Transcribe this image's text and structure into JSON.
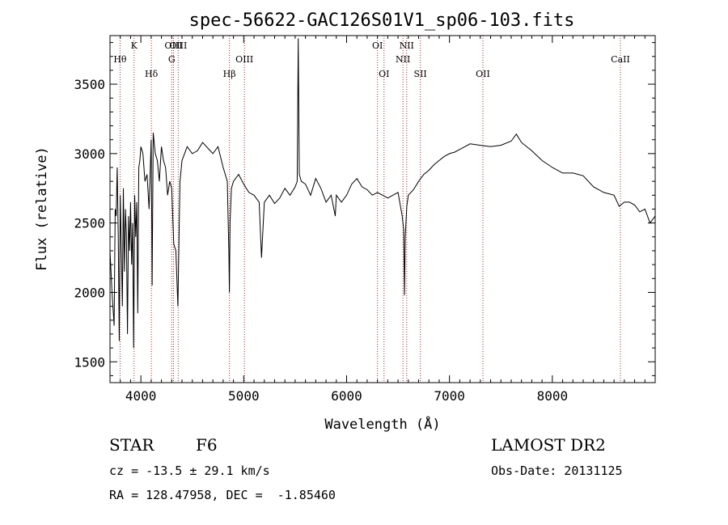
{
  "chart_data": {
    "type": "line",
    "title": "spec-56622-GAC126S01V1_sp06-103.fits",
    "xlabel": "Wavelength (Å)",
    "ylabel": "Flux (relative)",
    "xlim": [
      3700,
      9000
    ],
    "ylim": [
      1350,
      3850
    ],
    "x_ticks": [
      4000,
      5000,
      6000,
      7000,
      8000
    ],
    "y_ticks": [
      1500,
      2000,
      2500,
      3000,
      3500
    ],
    "grid": false,
    "series": [
      {
        "x": [
          3700,
          3720,
          3740,
          3750,
          3760,
          3770,
          3780,
          3790,
          3800,
          3810,
          3820,
          3830,
          3840,
          3850,
          3860,
          3870,
          3880,
          3890,
          3900,
          3910,
          3920,
          3930,
          3940,
          3950,
          3960,
          3970,
          3980,
          3990,
          4000,
          4020,
          4040,
          4060,
          4080,
          4100,
          4110,
          4120,
          4140,
          4160,
          4180,
          4200,
          4220,
          4240,
          4260,
          4280,
          4300,
          4320,
          4340,
          4360,
          4380,
          4400,
          4450,
          4500,
          4550,
          4600,
          4650,
          4700,
          4750,
          4800,
          4840,
          4855,
          4861,
          4867,
          4880,
          4900,
          4950,
          5000,
          5050,
          5100,
          5150,
          5173,
          5200,
          5250,
          5300,
          5350,
          5400,
          5450,
          5500,
          5520,
          5530,
          5540,
          5560,
          5600,
          5650,
          5700,
          5750,
          5800,
          5850,
          5890,
          5900,
          5950,
          6000,
          6050,
          6100,
          6150,
          6200,
          6250,
          6300,
          6350,
          6400,
          6450,
          6500,
          6540,
          6555,
          6563,
          6570,
          6585,
          6600,
          6650,
          6700,
          6750,
          6800,
          6850,
          6900,
          6950,
          7000,
          7050,
          7100,
          7150,
          7200,
          7300,
          7400,
          7500,
          7600,
          7650,
          7700,
          7800,
          7900,
          8000,
          8100,
          8200,
          8300,
          8400,
          8500,
          8600,
          8650,
          8700,
          8750,
          8800,
          8850,
          8900,
          8950,
          9000
        ],
        "y": [
          2300,
          2000,
          1760,
          2600,
          2550,
          2900,
          2400,
          1650,
          2700,
          2300,
          1900,
          2750,
          2150,
          2600,
          2400,
          1700,
          2550,
          2300,
          2650,
          2200,
          2500,
          1600,
          2700,
          2400,
          2650,
          1850,
          2900,
          2950,
          3050,
          3000,
          2800,
          2850,
          2600,
          3100,
          2050,
          3150,
          3000,
          2950,
          2800,
          3050,
          2950,
          2900,
          2700,
          2800,
          2750,
          2350,
          2300,
          1900,
          2800,
          2950,
          3050,
          3000,
          3020,
          3080,
          3040,
          3000,
          3050,
          2900,
          2800,
          2300,
          2000,
          2500,
          2750,
          2800,
          2850,
          2780,
          2720,
          2700,
          2650,
          2250,
          2650,
          2700,
          2640,
          2680,
          2750,
          2700,
          2760,
          2800,
          3830,
          2850,
          2800,
          2780,
          2700,
          2820,
          2750,
          2650,
          2700,
          2550,
          2700,
          2650,
          2700,
          2780,
          2820,
          2760,
          2740,
          2700,
          2720,
          2700,
          2680,
          2700,
          2720,
          2550,
          2450,
          1980,
          2400,
          2620,
          2700,
          2740,
          2800,
          2850,
          2880,
          2920,
          2950,
          2980,
          3000,
          3010,
          3030,
          3050,
          3070,
          3060,
          3050,
          3060,
          3090,
          3140,
          3080,
          3020,
          2950,
          2900,
          2860,
          2860,
          2840,
          2760,
          2720,
          2700,
          2620,
          2650,
          2650,
          2630,
          2580,
          2600,
          2500,
          2550
        ]
      }
    ],
    "spectral_lines": [
      {
        "name": "Hθ",
        "x": 3798,
        "row": 2
      },
      {
        "name": "K",
        "x": 3934,
        "row": 1
      },
      {
        "name": "Hδ",
        "x": 4102,
        "row": 3
      },
      {
        "name": "OIII",
        "x": 4317,
        "row": 1
      },
      {
        "name": "G",
        "x": 4300,
        "row": 2
      },
      {
        "name": "OIII",
        "x": 4363,
        "row": 0
      },
      {
        "name": "Hβ",
        "x": 4861,
        "row": 3
      },
      {
        "name": "OIII",
        "x": 5007,
        "row": 2
      },
      {
        "name": "OI",
        "x": 6300,
        "row": 1
      },
      {
        "name": "OI",
        "x": 6364,
        "row": 3
      },
      {
        "name": "NII",
        "x": 6548,
        "row": 2
      },
      {
        "name": "NII",
        "x": 6584,
        "row": 1
      },
      {
        "name": "SII",
        "x": 6717,
        "row": 3
      },
      {
        "name": "OII",
        "x": 7325,
        "row": 3
      },
      {
        "name": "CaII",
        "x": 8662,
        "row": 2
      }
    ]
  },
  "footer": {
    "object_class": "STAR",
    "subclass": "F6",
    "survey": "LAMOST DR2",
    "redshift_text": "cz = -13.5 ± 29.1 km/s",
    "obs_date_text": "Obs-Date: 20131125",
    "coords_text": "RA = 128.47958, DEC =  -1.85460"
  }
}
